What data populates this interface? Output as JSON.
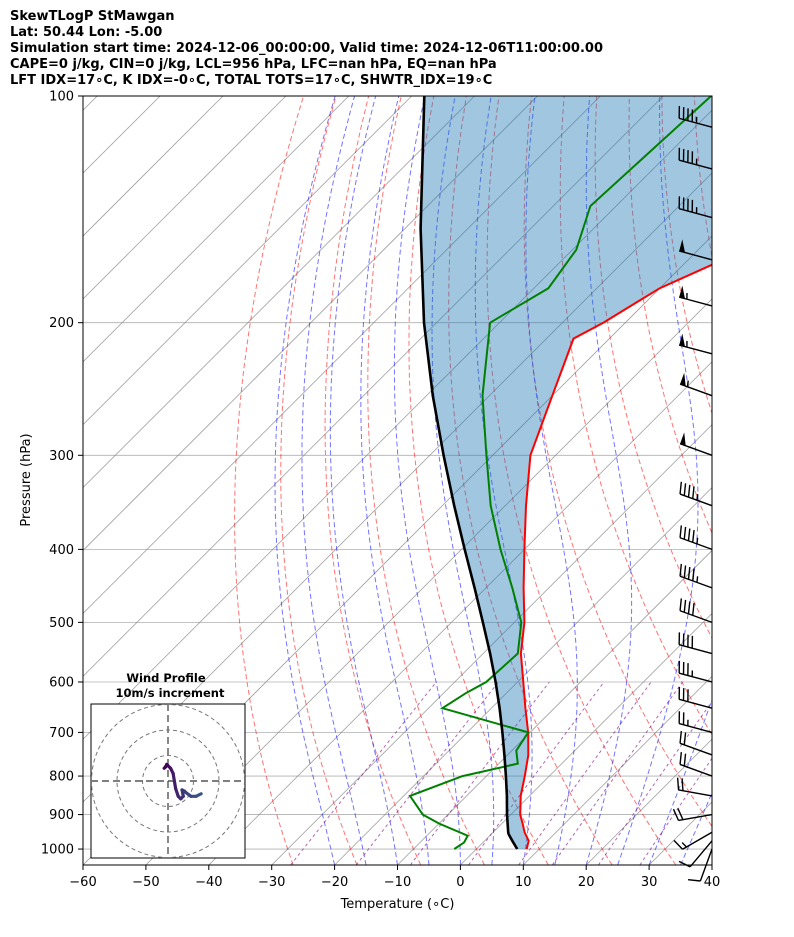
{
  "header": {
    "line1": "SkewTLogP StMawgan",
    "line2": "Lat: 50.44   Lon: -5.00",
    "line3": "Simulation start time: 2024-12-06_00:00:00, Valid time: 2024-12-06T11:00:00.00",
    "line4": "CAPE=0 j/kg, CIN=0 j/kg, LCL=956 hPa, LFC=nan hPa, EQ=nan hPa",
    "line5": "LFT IDX=17∘C, K IDX=-0∘C, TOTAL TOTS=17∘C, SHWTR_IDX=19∘C"
  },
  "chart_data": {
    "type": "skewt",
    "xlabel": "Temperature (∘C)",
    "ylabel": "Pressure (hPa)",
    "xlim": [
      -60,
      40
    ],
    "ylim": [
      1050,
      100
    ],
    "x_ticks": [
      -60,
      -50,
      -40,
      -30,
      -20,
      -10,
      0,
      10,
      20,
      30,
      40
    ],
    "y_ticks": [
      100,
      200,
      300,
      400,
      500,
      600,
      700,
      800,
      900,
      1000
    ],
    "temperature": {
      "name": "Temperature",
      "color": "#ff0000",
      "p": [
        1000,
        975,
        950,
        925,
        900,
        850,
        800,
        750,
        700,
        650,
        600,
        550,
        500,
        450,
        400,
        350,
        300,
        250,
        210,
        200,
        180,
        160,
        150,
        130,
        115,
        100
      ],
      "t": [
        8.0,
        7.0,
        5.0,
        3.3,
        1.5,
        -1.4,
        -3.9,
        -6.7,
        -10.3,
        -14.6,
        -19.1,
        -24.0,
        -28.4,
        -34.0,
        -40.0,
        -46.7,
        -54.0,
        -60.0,
        -65.7,
        -63.5,
        -60.0,
        -52.5,
        -51.0,
        -49.8,
        -48.3,
        -46.2
      ]
    },
    "dewpoint": {
      "name": "Dewpoint",
      "color": "#008000",
      "p": [
        1000,
        980,
        960,
        925,
        900,
        850,
        800,
        770,
        740,
        700,
        650,
        620,
        600,
        550,
        500,
        450,
        400,
        350,
        300,
        250,
        200,
        180,
        160,
        140,
        100
      ],
      "td": [
        -3.5,
        -3.0,
        -3.5,
        -10.0,
        -14.0,
        -19.0,
        -13.8,
        -7.0,
        -9.3,
        -10.3,
        -27.8,
        -26.4,
        -25.0,
        -24.5,
        -28.9,
        -35.8,
        -43.8,
        -52.3,
        -61.0,
        -71.1,
        -81.5,
        -77.7,
        -79.4,
        -84.1,
        -82.4
      ]
    },
    "parcel": {
      "name": "Parcel profile",
      "color": "#000000",
      "p": [
        1000,
        975,
        956,
        950,
        900,
        850,
        800,
        750,
        700,
        650,
        600,
        550,
        500,
        450,
        400,
        350,
        300,
        250,
        200,
        150,
        100
      ],
      "t": [
        6.5,
        4.4,
        2.8,
        2.4,
        -0.6,
        -3.6,
        -6.9,
        -10.5,
        -14.4,
        -18.7,
        -23.5,
        -28.9,
        -35.0,
        -41.8,
        -49.5,
        -58.1,
        -67.8,
        -79.0,
        -92.0,
        -107.5,
        -128.0
      ]
    },
    "wind_barbs": {
      "p": [
        1000,
        975,
        950,
        900,
        850,
        800,
        750,
        700,
        650,
        600,
        550,
        500,
        450,
        400,
        350,
        300,
        250,
        220,
        190,
        165,
        145,
        125,
        110
      ],
      "speed_kt": [
        10,
        10,
        15,
        20,
        20,
        20,
        20,
        25,
        30,
        35,
        40,
        40,
        45,
        45,
        45,
        50,
        55,
        55,
        55,
        50,
        45,
        45,
        45
      ],
      "direction_deg": [
        200,
        220,
        240,
        260,
        280,
        290,
        290,
        285,
        285,
        285,
        285,
        290,
        290,
        290,
        290,
        290,
        290,
        285,
        285,
        285,
        285,
        285,
        285
      ]
    },
    "hodograph": {
      "title": "Wind Profile",
      "subtitle": "10m/s increment",
      "rings_ms": [
        10,
        20,
        30
      ],
      "points_ms": [
        [
          13,
          -5
        ],
        [
          11,
          -6
        ],
        [
          9,
          -6
        ],
        [
          7,
          -4.5
        ],
        [
          6.5,
          -4
        ],
        [
          5.5,
          -3.5
        ],
        [
          6,
          -6
        ],
        [
          5,
          -7
        ],
        [
          4,
          -6
        ],
        [
          3,
          -3
        ],
        [
          2,
          3
        ],
        [
          1,
          5
        ],
        [
          0,
          6
        ],
        [
          -0.5,
          6.5
        ],
        [
          -1,
          5.5
        ],
        [
          -1.5,
          5
        ]
      ]
    },
    "background": {
      "isotherm_color": "#808080",
      "dry_adiabat_color": "#ff0000",
      "moist_adiabat_color": "#0000ff",
      "mixing_ratio_color": "#800080",
      "cape_fill": "#1f77b4"
    }
  }
}
